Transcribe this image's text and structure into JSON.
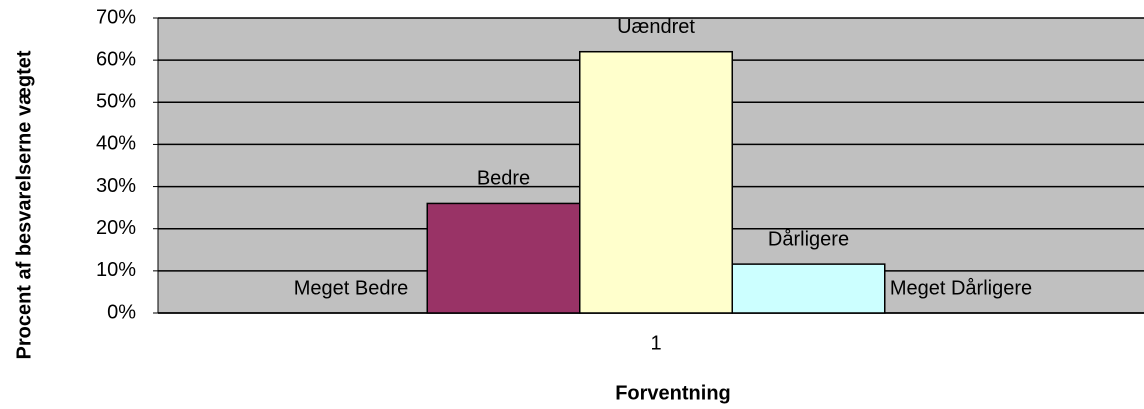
{
  "chart_data": {
    "type": "bar",
    "categories": [
      "1"
    ],
    "series": [
      {
        "name": "Meget Bedre",
        "color": "#9999ff",
        "values": [
          0
        ]
      },
      {
        "name": "Bedre",
        "color": "#993366",
        "values": [
          26
        ]
      },
      {
        "name": "Uændret",
        "color": "#ffffcc",
        "values": [
          62
        ]
      },
      {
        "name": "Dårligere",
        "color": "#ccffff",
        "values": [
          11.6
        ]
      },
      {
        "name": "Meget Dårligere",
        "color": "#660066",
        "values": [
          0
        ]
      }
    ],
    "x_label": "Forventning",
    "y_label": "Procent af besvarelserne vægtet",
    "ylim": [
      0,
      70
    ],
    "yticks": [
      {
        "value": 0,
        "label": "0%"
      },
      {
        "value": 10,
        "label": "10%"
      },
      {
        "value": 20,
        "label": "20%"
      },
      {
        "value": 30,
        "label": "30%"
      },
      {
        "value": 40,
        "label": "40%"
      },
      {
        "value": 50,
        "label": "50%"
      },
      {
        "value": 60,
        "label": "60%"
      },
      {
        "value": 70,
        "label": "70%"
      }
    ],
    "grid": true,
    "plot_background": "#c0c0c0"
  }
}
